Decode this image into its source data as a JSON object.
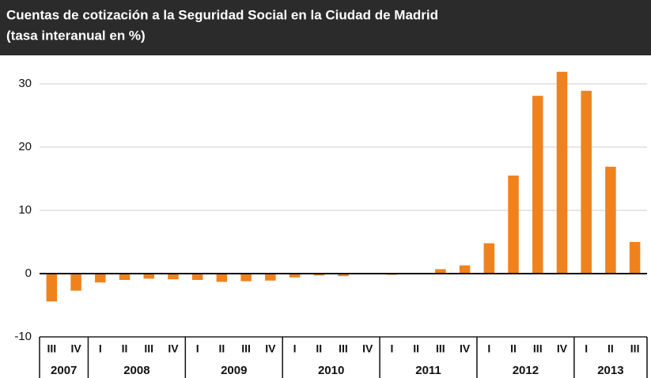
{
  "chart_data": {
    "type": "bar",
    "title": "Cuentas de cotización a la Seguridad Social en la Ciudad de Madrid",
    "subtitle": "(tasa interanual en %)",
    "categories": [
      "III",
      "IV",
      "I",
      "II",
      "III",
      "IV",
      "I",
      "II",
      "III",
      "IV",
      "I",
      "II",
      "III",
      "IV",
      "I",
      "II",
      "III",
      "IV",
      "I",
      "II",
      "III",
      "IV",
      "I",
      "II",
      "III"
    ],
    "years": [
      "2007",
      null,
      "2008",
      null,
      null,
      null,
      "2009",
      null,
      null,
      null,
      "2010",
      null,
      null,
      null,
      "2011",
      null,
      null,
      null,
      "2012",
      null,
      null,
      null,
      "2013",
      null,
      null
    ],
    "values": [
      -4.4,
      -2.7,
      -1.4,
      -1.0,
      -0.8,
      -0.9,
      -1.0,
      -1.3,
      -1.2,
      -1.1,
      -0.6,
      -0.3,
      -0.4,
      -0.1,
      -0.2,
      0.0,
      0.7,
      1.3,
      4.8,
      15.5,
      28.1,
      31.9,
      28.9,
      16.9,
      5.0
    ],
    "color": "#f0821e",
    "ylim": [
      -10,
      30
    ],
    "yticks": [
      -10,
      0,
      10,
      20,
      30
    ],
    "grid": true
  }
}
